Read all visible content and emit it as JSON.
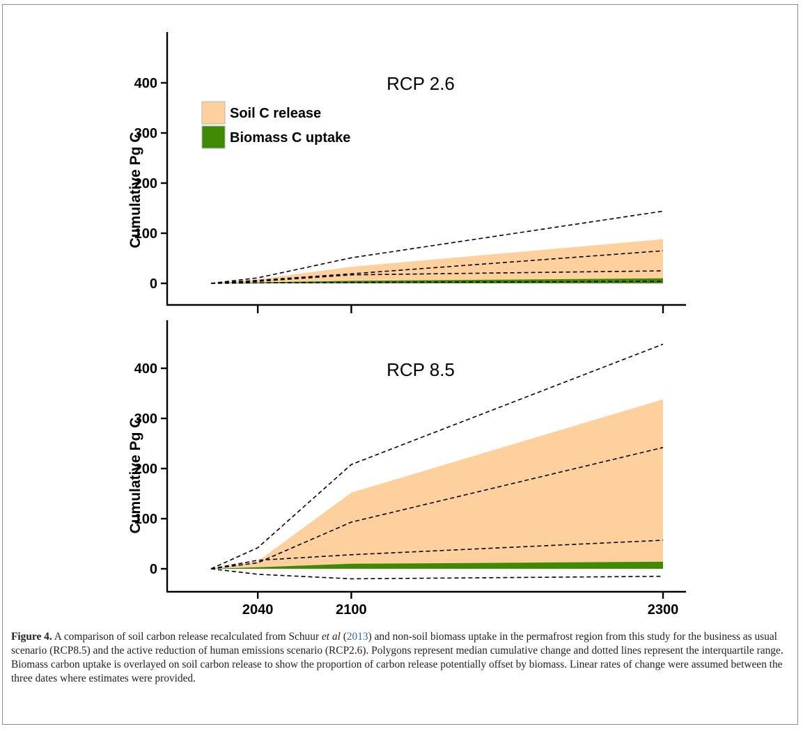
{
  "chart_data": [
    {
      "type": "area",
      "title": "RCP 2.6",
      "ylabel": "Cumulative Pg C",
      "ylim": [
        -40,
        490
      ],
      "yticks": [
        0,
        100,
        200,
        300,
        400
      ],
      "x_domain": [
        2010,
        2300
      ],
      "legend": [
        {
          "label": "Soil C release",
          "color": "#fdd09d"
        },
        {
          "label": "Biomass C uptake",
          "color": "#3e8a04"
        }
      ],
      "legend_position": "top-left",
      "x": [
        2010,
        2040,
        2100,
        2300
      ],
      "soil_release_median": [
        0,
        8,
        33,
        88
      ],
      "biomass_uptake_median": [
        0,
        2,
        5,
        10
      ],
      "interquartile_lines": [
        {
          "values": [
            0,
            11,
            51,
            144
          ]
        },
        {
          "values": [
            0,
            6,
            19,
            65
          ]
        },
        {
          "values": [
            0,
            4,
            17,
            25
          ]
        },
        {
          "values": [
            0,
            1,
            2,
            4
          ]
        }
      ],
      "grid": false
    },
    {
      "type": "area",
      "title": "RCP 8.5",
      "ylabel": "Cumulative Pg C",
      "ylim": [
        -40,
        490
      ],
      "yticks": [
        0,
        100,
        200,
        300,
        400
      ],
      "x_domain": [
        2010,
        2300
      ],
      "xticks": [
        "2040",
        "2100",
        "2300"
      ],
      "x": [
        2010,
        2040,
        2100,
        2300
      ],
      "soil_release_median": [
        0,
        15,
        152,
        338
      ],
      "biomass_uptake_median": [
        0,
        3,
        10,
        14
      ],
      "interquartile_lines": [
        {
          "values": [
            0,
            42,
            208,
            448
          ]
        },
        {
          "values": [
            0,
            12,
            93,
            242
          ]
        },
        {
          "values": [
            0,
            17,
            28,
            57
          ]
        },
        {
          "values": [
            0,
            -11,
            -20,
            -15
          ]
        }
      ],
      "grid": false
    }
  ],
  "caption": {
    "label": "Figure 4.",
    "text_1": " A comparison of soil carbon release recalculated from Schuur ",
    "etal": "et al",
    "year": "2013",
    "text_2": ") and non-soil biomass uptake in the permafrost region from this study for the business as usual scenario (RCP8.5) and the active reduction of human emissions scenario (RCP2.6). Polygons represent median cumulative change and dotted lines represent the interquartile range. Biomass carbon uptake is overlayed on soil carbon release to show the proportion of carbon release potentially offset by biomass. Linear rates of change were assumed between the three dates where estimates were provided."
  },
  "colors": {
    "soil": "#fdd09d",
    "biomass": "#3e8a04",
    "axis": "#000000",
    "citation": "#2a6fb0"
  }
}
